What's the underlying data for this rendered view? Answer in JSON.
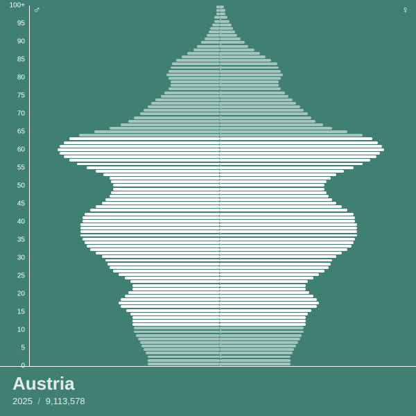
{
  "chart": {
    "type": "population-pyramid",
    "country": "Austria",
    "year": "2025",
    "population": "9,113,578",
    "male_symbol": "♂",
    "female_symbol": "♀",
    "background_color": "#3f8073",
    "bar_color_primary": "#ffffff",
    "bar_color_secondary": "#a4c5bd",
    "text_color": "#ffffff",
    "grid_color": "#2d6056",
    "center_line_color": "#8fb5ac",
    "axis_line_color": "#ffffff",
    "y_ticks": [
      "0",
      "5",
      "10",
      "15",
      "20",
      "25",
      "30",
      "35",
      "40",
      "45",
      "50",
      "55",
      "60",
      "65",
      "70",
      "75",
      "80",
      "85",
      "90",
      "95",
      "100+"
    ],
    "age_min": 0,
    "age_max": 100,
    "secondary_ranges": [
      [
        0,
        10
      ],
      [
        64,
        100
      ]
    ],
    "max_value": 100,
    "data": {
      "male": [
        38,
        38,
        38,
        39,
        40,
        41,
        42,
        43,
        44,
        45,
        45,
        46,
        46,
        46,
        47,
        49,
        52,
        53,
        52,
        50,
        48,
        46,
        46,
        47,
        50,
        53,
        56,
        58,
        59,
        60,
        62,
        65,
        68,
        70,
        71,
        72,
        73,
        73,
        73,
        73,
        72,
        72,
        71,
        68,
        65,
        62,
        60,
        58,
        57,
        56,
        56,
        57,
        58,
        61,
        65,
        70,
        75,
        79,
        82,
        84,
        85,
        84,
        82,
        79,
        74,
        66,
        58,
        52,
        48,
        45,
        42,
        40,
        38,
        36,
        34,
        31,
        29,
        27,
        26,
        26,
        27,
        28,
        27,
        26,
        25,
        23,
        20,
        17,
        14,
        12,
        10,
        8,
        7,
        6,
        5,
        4,
        3,
        3,
        2,
        2,
        2
      ],
      "female": [
        37,
        37,
        37,
        38,
        39,
        40,
        41,
        42,
        43,
        44,
        44,
        45,
        45,
        45,
        46,
        48,
        51,
        52,
        51,
        49,
        47,
        45,
        45,
        46,
        49,
        52,
        55,
        57,
        58,
        59,
        61,
        64,
        67,
        69,
        70,
        71,
        72,
        72,
        72,
        72,
        71,
        71,
        70,
        67,
        64,
        61,
        59,
        57,
        56,
        55,
        55,
        56,
        58,
        61,
        65,
        70,
        75,
        79,
        82,
        84,
        86,
        85,
        83,
        80,
        75,
        67,
        59,
        54,
        50,
        48,
        46,
        44,
        42,
        40,
        38,
        36,
        34,
        32,
        31,
        31,
        32,
        33,
        32,
        31,
        30,
        27,
        24,
        21,
        18,
        15,
        13,
        11,
        9,
        8,
        7,
        6,
        5,
        4,
        3,
        3,
        2
      ]
    }
  }
}
